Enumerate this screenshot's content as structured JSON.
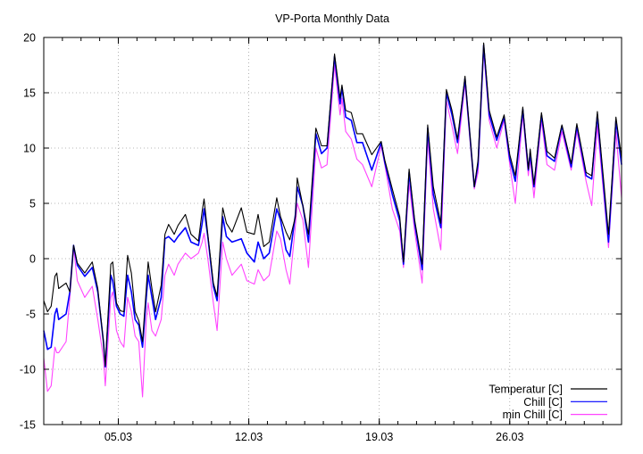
{
  "chart_data": {
    "type": "line",
    "title": "VP-Porta Monthly Data",
    "xlabel": "",
    "ylabel": "",
    "xlim": [
      1,
      32
    ],
    "ylim": [
      -15,
      20
    ],
    "grid": true,
    "legend_position": "bottom-right",
    "x_unit": "day of March",
    "yticks": [
      -15,
      -10,
      -5,
      0,
      5,
      10,
      15,
      20
    ],
    "xticks": [
      {
        "value": 5,
        "label": "05.03"
      },
      {
        "value": 12,
        "label": "12.03"
      },
      {
        "value": 19,
        "label": "19.03"
      },
      {
        "value": 26,
        "label": "26.03"
      }
    ],
    "x": [
      1.0,
      1.2,
      1.4,
      1.6,
      1.7,
      1.8,
      2.2,
      2.4,
      2.6,
      2.8,
      3.2,
      3.6,
      3.9,
      4.2,
      4.3,
      4.6,
      4.7,
      4.9,
      5.1,
      5.3,
      5.5,
      5.7,
      5.9,
      6.1,
      6.3,
      6.5,
      6.6,
      6.8,
      7.0,
      7.3,
      7.5,
      7.7,
      8.0,
      8.2,
      8.6,
      8.9,
      9.3,
      9.5,
      9.6,
      9.8,
      10.1,
      10.3,
      10.6,
      10.8,
      11.1,
      11.6,
      11.9,
      12.3,
      12.5,
      12.8,
      13.1,
      13.5,
      13.7,
      14.0,
      14.2,
      14.5,
      14.6,
      14.9,
      15.2,
      15.6,
      15.9,
      16.2,
      16.6,
      16.9,
      17.0,
      17.2,
      17.5,
      17.8,
      18.1,
      18.6,
      19.1,
      19.3,
      19.7,
      20.1,
      20.3,
      20.6,
      20.9,
      21.3,
      21.6,
      21.9,
      22.3,
      22.6,
      22.9,
      23.2,
      23.6,
      24.1,
      24.3,
      24.6,
      24.9,
      25.3,
      25.7,
      26.0,
      26.3,
      26.7,
      27.0,
      27.1,
      27.3,
      27.7,
      28.0,
      28.4,
      28.8,
      29.3,
      29.6,
      30.1,
      30.4,
      30.7,
      31.3,
      31.7,
      32.0
    ],
    "series": [
      {
        "name": "Temperatur [C]",
        "color": "#000000",
        "values": [
          -3.8,
          -4.8,
          -4.3,
          -1.6,
          -1.3,
          -2.7,
          -2.2,
          -3,
          1.2,
          -0.4,
          -1.3,
          -0.3,
          -2.7,
          -7.5,
          -9.7,
          -0.5,
          -0.3,
          -4,
          -4.7,
          -4.8,
          0.3,
          -1.3,
          -4.8,
          -5.6,
          -7.5,
          -2.7,
          -0.3,
          -2.7,
          -4.8,
          -2.4,
          2.2,
          3.1,
          2.2,
          3,
          4.0,
          2.2,
          1.6,
          4.3,
          5.4,
          2.2,
          -2.2,
          -3.4,
          4.6,
          3.2,
          2.4,
          4.6,
          2.4,
          2.2,
          4.0,
          1.1,
          1.5,
          5.5,
          3.8,
          2.4,
          1.7,
          3.8,
          7.3,
          4.8,
          2.2,
          11.8,
          10.2,
          10.2,
          18.5,
          14.5,
          15.7,
          13.4,
          13.2,
          11.3,
          11.3,
          9.4,
          10.6,
          8.9,
          6.3,
          3.8,
          -0.3,
          8.1,
          3.5,
          -0.5,
          12.1,
          6.5,
          3.2,
          15.3,
          13.4,
          10.8,
          16.5,
          6.5,
          8.9,
          19.5,
          13.4,
          11,
          13,
          9.4,
          7.5,
          13.7,
          8.1,
          9.9,
          6.7,
          13.2,
          9.7,
          9.1,
          12.1,
          8.6,
          12.2,
          7.8,
          7.5,
          13.3,
          2.2,
          12.8,
          9.1
        ]
      },
      {
        "name": "Chill [C]",
        "color": "#0000ff",
        "values": [
          -6.5,
          -8.2,
          -8,
          -5,
          -4.5,
          -5.5,
          -5,
          -3,
          1.2,
          -0.6,
          -1.6,
          -0.8,
          -3,
          -7.5,
          -9.8,
          -1.5,
          -2,
          -4.3,
          -5,
          -5.2,
          -1.5,
          -3,
          -5.5,
          -6,
          -8,
          -3.5,
          -1.5,
          -3.5,
          -5.5,
          -3.5,
          1.8,
          2,
          1.5,
          2,
          2.8,
          1.5,
          1.2,
          3.2,
          4.5,
          2,
          -2.5,
          -3.8,
          3.8,
          2,
          1.5,
          1.8,
          0.5,
          -0.3,
          1.5,
          0,
          0.5,
          4.5,
          3.5,
          0.8,
          0.2,
          4,
          6.5,
          4.8,
          1.5,
          11.3,
          9.5,
          10,
          18.3,
          14,
          15.5,
          12.8,
          12.5,
          10.5,
          10.5,
          8,
          10.5,
          8.7,
          5.8,
          3.4,
          -0.5,
          7.8,
          3.2,
          -1,
          11.8,
          5.8,
          2.8,
          15,
          13,
          10.5,
          16.3,
          6.5,
          8.5,
          19.3,
          13,
          10.7,
          12.8,
          9,
          7,
          13.5,
          8,
          9.5,
          6.5,
          13,
          9.3,
          8.8,
          12,
          8.3,
          12,
          7.5,
          7.2,
          13,
          1.5,
          12.5,
          8.5
        ]
      },
      {
        "name": "min Chill [C]",
        "color": "#ff44ff",
        "values": [
          -9,
          -12,
          -11.5,
          -8,
          -8.5,
          -8.5,
          -7.5,
          -3.5,
          1,
          -2,
          -3.5,
          -2.5,
          -5.5,
          -9,
          -11.5,
          -3.5,
          -3,
          -6.5,
          -7.5,
          -8,
          -3.5,
          -4.8,
          -7,
          -7.5,
          -12.5,
          -5.5,
          -4,
          -6.5,
          -7,
          -5.5,
          -1.5,
          -0.5,
          -1.5,
          -0.5,
          0.5,
          0,
          0.5,
          1.5,
          2.3,
          0,
          -4,
          -6.5,
          1.5,
          0,
          -1.5,
          -0.5,
          -2,
          -2.3,
          -1,
          -2,
          -1.5,
          2.5,
          1.8,
          -1,
          -2.3,
          3,
          5,
          3.5,
          -0.8,
          10,
          8.2,
          8.5,
          17.5,
          13,
          14.5,
          11.5,
          10.8,
          9,
          8.5,
          6.5,
          10.2,
          8.5,
          4.5,
          2.5,
          -0.8,
          6.8,
          2.5,
          -2.2,
          10.8,
          4.5,
          0.8,
          14.3,
          12,
          9.5,
          15.8,
          6.3,
          7.8,
          18.8,
          12.5,
          10,
          12.5,
          8.5,
          5,
          13,
          7.5,
          9,
          5.5,
          12.5,
          8.5,
          8,
          11.5,
          8,
          11.5,
          7,
          4.8,
          12,
          1,
          11.5,
          5.5
        ]
      }
    ]
  }
}
